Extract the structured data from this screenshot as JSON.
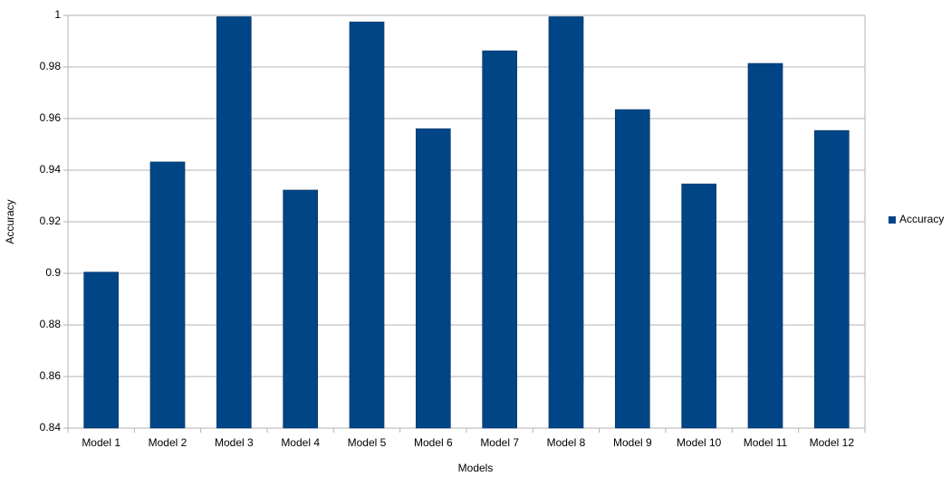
{
  "chart_data": {
    "type": "bar",
    "x_label": "Models",
    "y_label": "Accuracy",
    "categories": [
      "Model 1",
      "Model 2",
      "Model 3",
      "Model 4",
      "Model 5",
      "Model 6",
      "Model 7",
      "Model 8",
      "Model 9",
      "Model 10",
      "Model 11",
      "Model 12"
    ],
    "series": [
      {
        "name": "Accuracy",
        "color": "#004586",
        "values": [
          0.9005,
          0.9432,
          0.9995,
          0.9323,
          0.9975,
          0.9561,
          0.9863,
          0.9995,
          0.9635,
          0.9347,
          0.9814,
          0.9554
        ]
      }
    ],
    "ylim": [
      0.84,
      1
    ],
    "yticks": [
      0.84,
      0.86,
      0.88,
      0.9,
      0.92,
      0.94,
      0.96,
      0.98,
      1
    ],
    "grid": true,
    "legend": "right"
  }
}
